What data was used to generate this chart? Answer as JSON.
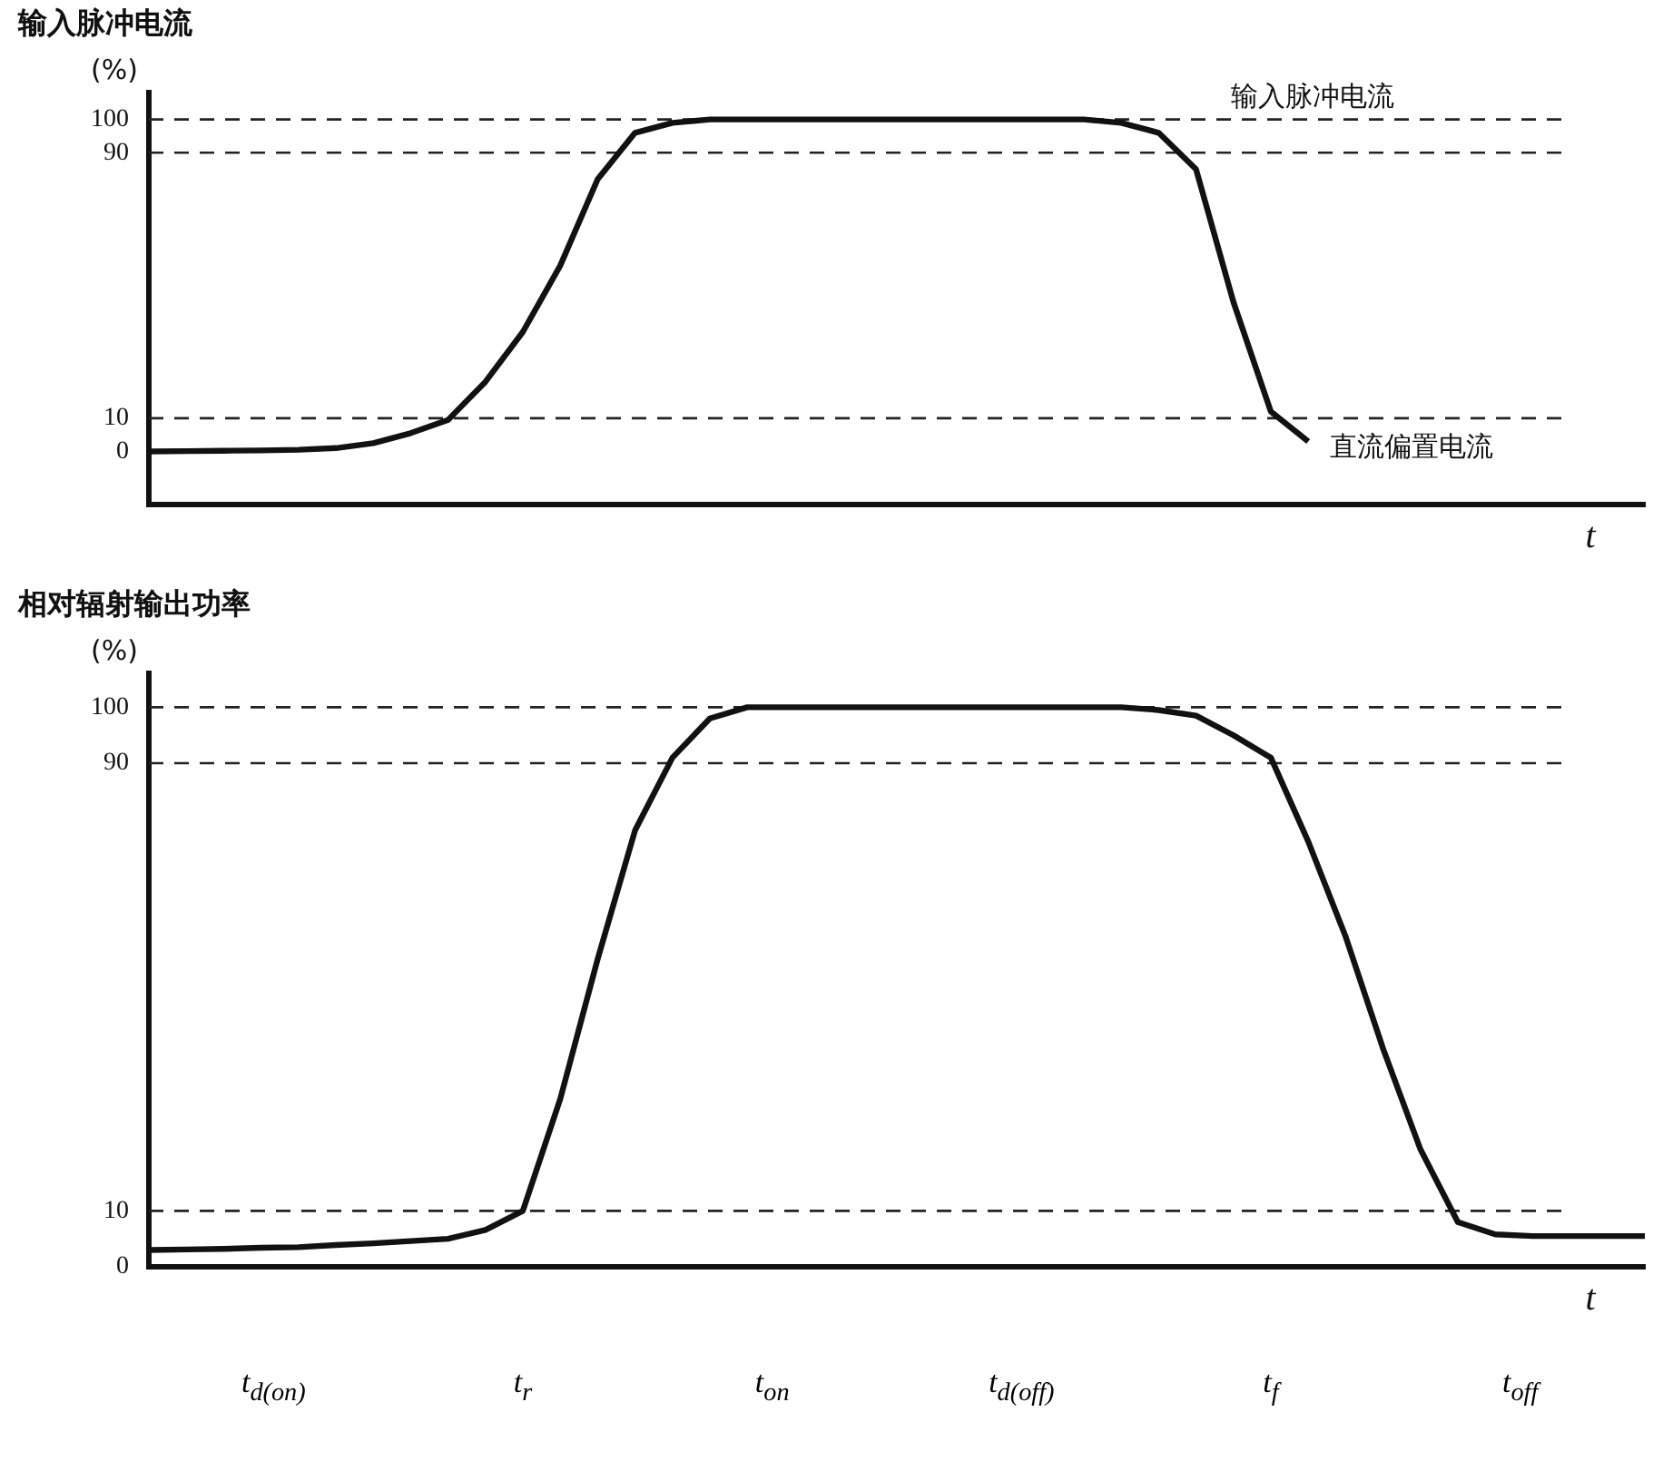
{
  "chart_data": [
    {
      "type": "line",
      "title": "输入脉冲电流",
      "ylabel": "(%)",
      "xlabel": "t",
      "ylim": [
        -16,
        108
      ],
      "yticks": [
        0,
        10,
        90,
        100
      ],
      "tick_labels": "y",
      "grid": false,
      "legend": false,
      "categories": [
        null,
        null,
        null,
        null,
        null,
        null,
        null,
        null,
        null,
        null,
        null,
        null,
        null,
        null,
        null,
        null,
        null,
        null,
        null,
        null,
        null,
        null,
        null,
        null,
        null,
        null,
        null,
        null,
        null,
        null,
        null,
        null,
        null,
        null,
        null,
        null,
        null,
        null,
        null,
        null,
        null
      ],
      "series": [
        {
          "color": "#111111",
          "values": [
            0,
            0.1,
            0.2,
            0.3,
            0.5,
            1,
            2.5,
            5.5,
            9.5,
            21,
            36,
            56,
            82,
            96,
            99,
            100,
            100,
            100,
            100,
            100,
            100,
            100,
            100,
            100,
            100,
            100,
            99,
            96,
            85,
            45,
            12,
            3,
            null,
            null,
            null,
            null,
            null,
            null,
            null,
            null,
            null
          ]
        }
      ],
      "ref_lines": [
        {
          "axis": "y",
          "value": 100,
          "line_style": "dashed"
        },
        {
          "axis": "y",
          "value": 90,
          "line_style": "dashed"
        },
        {
          "axis": "y",
          "value": 10,
          "line_style": "dashed"
        }
      ],
      "annotations": [
        {
          "text": "输入脉冲电流",
          "y": 90
        },
        "直流偏置电流"
      ]
    },
    {
      "type": "line",
      "title": "相对辐射输出功率",
      "ylabel": "(%)",
      "xlabel": "t",
      "ylim": [
        0,
        106
      ],
      "yticks": [
        0,
        10,
        90,
        100
      ],
      "tick_labels": "y",
      "grid": false,
      "legend": false,
      "categories": [
        null,
        null,
        null,
        null,
        null,
        null,
        null,
        null,
        null,
        null,
        null,
        null,
        null,
        null,
        null,
        null,
        null,
        null,
        null,
        null,
        null,
        null,
        null,
        null,
        null,
        null,
        null,
        null,
        null,
        null,
        null,
        null,
        null,
        null,
        null,
        null,
        null,
        null,
        null,
        null,
        null
      ],
      "series": [
        {
          "color": "#111111",
          "values": [
            3,
            3.1,
            3.2,
            3.4,
            3.5,
            3.9,
            4.2,
            4.6,
            5,
            6.6,
            10,
            30,
            55,
            78,
            91,
            98,
            100,
            100,
            100,
            100,
            100,
            100,
            100,
            100,
            100,
            100,
            100,
            99.5,
            98.5,
            95,
            91,
            76,
            59,
            39,
            21,
            8,
            5.8,
            5.5,
            5.5,
            5.5,
            5.5
          ]
        }
      ],
      "ref_lines": [
        {
          "axis": "y",
          "value": 100,
          "line_style": "dashed"
        },
        {
          "axis": "y",
          "value": 90,
          "line_style": "dashed"
        },
        {
          "axis": "y",
          "value": 10,
          "line_style": "dashed"
        }
      ],
      "annotations": [
        "t$_{d(on)}$",
        "t$_{r}$",
        "t$_{on}$",
        "t$_{d(off)}$",
        "t$_{f}$",
        "t$_{off}$"
      ]
    }
  ]
}
